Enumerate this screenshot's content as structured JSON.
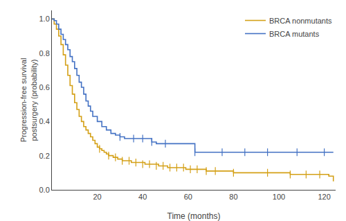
{
  "chart_data": {
    "type": "step",
    "xlabel": "Time (months)",
    "ylabel": "Progression-free survival\npostsurgery (probability)",
    "xlim": [
      0,
      125
    ],
    "ylim": [
      0.0,
      1.05
    ],
    "xticks": [
      20,
      40,
      60,
      80,
      100,
      120
    ],
    "yticks": [
      {
        "value": 0.0,
        "label": "0.0"
      },
      0.2,
      0.4,
      0.6,
      0.8,
      {
        "value": 1.0,
        "label": "1.0"
      }
    ],
    "grid": false,
    "legend": "upper right",
    "series": [
      {
        "name": "BRCA nonmutants",
        "color": "#D4A017",
        "marker": "|",
        "x": [
          0,
          1,
          2,
          3,
          4,
          5,
          6,
          7,
          8,
          9,
          10,
          11,
          12,
          13,
          14,
          15,
          16,
          17,
          18,
          19,
          20,
          21,
          22,
          23,
          24,
          25,
          26,
          27,
          28,
          29,
          30,
          31,
          32,
          33,
          35,
          37,
          39,
          41,
          43,
          45,
          47,
          49,
          51,
          53,
          55,
          57,
          59,
          61,
          63,
          66,
          68,
          72,
          76,
          80,
          85,
          90,
          95,
          100,
          105,
          108,
          110,
          112,
          115,
          118,
          120,
          122,
          124
        ],
        "values": [
          1.0,
          0.97,
          0.94,
          0.9,
          0.85,
          0.79,
          0.73,
          0.67,
          0.61,
          0.56,
          0.51,
          0.47,
          0.43,
          0.4,
          0.37,
          0.35,
          0.33,
          0.31,
          0.29,
          0.27,
          0.25,
          0.24,
          0.23,
          0.22,
          0.21,
          0.2,
          0.2,
          0.19,
          0.19,
          0.18,
          0.18,
          0.17,
          0.17,
          0.17,
          0.16,
          0.16,
          0.16,
          0.15,
          0.15,
          0.15,
          0.14,
          0.14,
          0.13,
          0.13,
          0.13,
          0.13,
          0.12,
          0.12,
          0.12,
          0.12,
          0.11,
          0.11,
          0.11,
          0.1,
          0.1,
          0.1,
          0.1,
          0.1,
          0.09,
          0.09,
          0.09,
          0.09,
          0.09,
          0.09,
          0.09,
          0.08,
          0.05
        ],
        "censor_x": [
          21,
          25,
          28,
          31,
          34,
          37,
          40,
          43,
          46,
          49,
          52,
          55,
          58,
          61,
          64,
          68,
          72,
          80,
          95,
          105,
          112,
          118
        ],
        "censor_values": [
          0.24,
          0.2,
          0.19,
          0.17,
          0.17,
          0.16,
          0.15,
          0.15,
          0.14,
          0.14,
          0.13,
          0.13,
          0.13,
          0.12,
          0.12,
          0.11,
          0.11,
          0.1,
          0.1,
          0.09,
          0.09,
          0.09
        ]
      },
      {
        "name": "BRCA mutants",
        "color": "#4472C4",
        "marker": "|",
        "x": [
          0,
          1,
          2,
          3,
          4,
          5,
          6,
          7,
          8,
          9,
          10,
          11,
          12,
          13,
          14,
          15,
          16,
          17,
          18,
          20,
          22,
          24,
          26,
          28,
          30,
          32,
          34,
          36,
          38,
          40,
          42,
          44,
          46,
          50,
          54,
          58,
          63,
          66,
          75,
          85,
          95,
          108,
          120,
          124
        ],
        "values": [
          1.0,
          0.99,
          0.97,
          0.94,
          0.91,
          0.88,
          0.85,
          0.82,
          0.78,
          0.75,
          0.71,
          0.67,
          0.63,
          0.6,
          0.56,
          0.52,
          0.49,
          0.46,
          0.43,
          0.4,
          0.37,
          0.35,
          0.33,
          0.32,
          0.31,
          0.3,
          0.3,
          0.3,
          0.3,
          0.3,
          0.3,
          0.28,
          0.27,
          0.27,
          0.27,
          0.27,
          0.22,
          0.22,
          0.22,
          0.22,
          0.22,
          0.22,
          0.22,
          0.22
        ],
        "censor_x": [
          30,
          36,
          40,
          44,
          50,
          63,
          75,
          85,
          95,
          108,
          120
        ],
        "censor_values": [
          0.31,
          0.3,
          0.3,
          0.28,
          0.27,
          0.22,
          0.22,
          0.22,
          0.22,
          0.22,
          0.22
        ]
      }
    ]
  }
}
